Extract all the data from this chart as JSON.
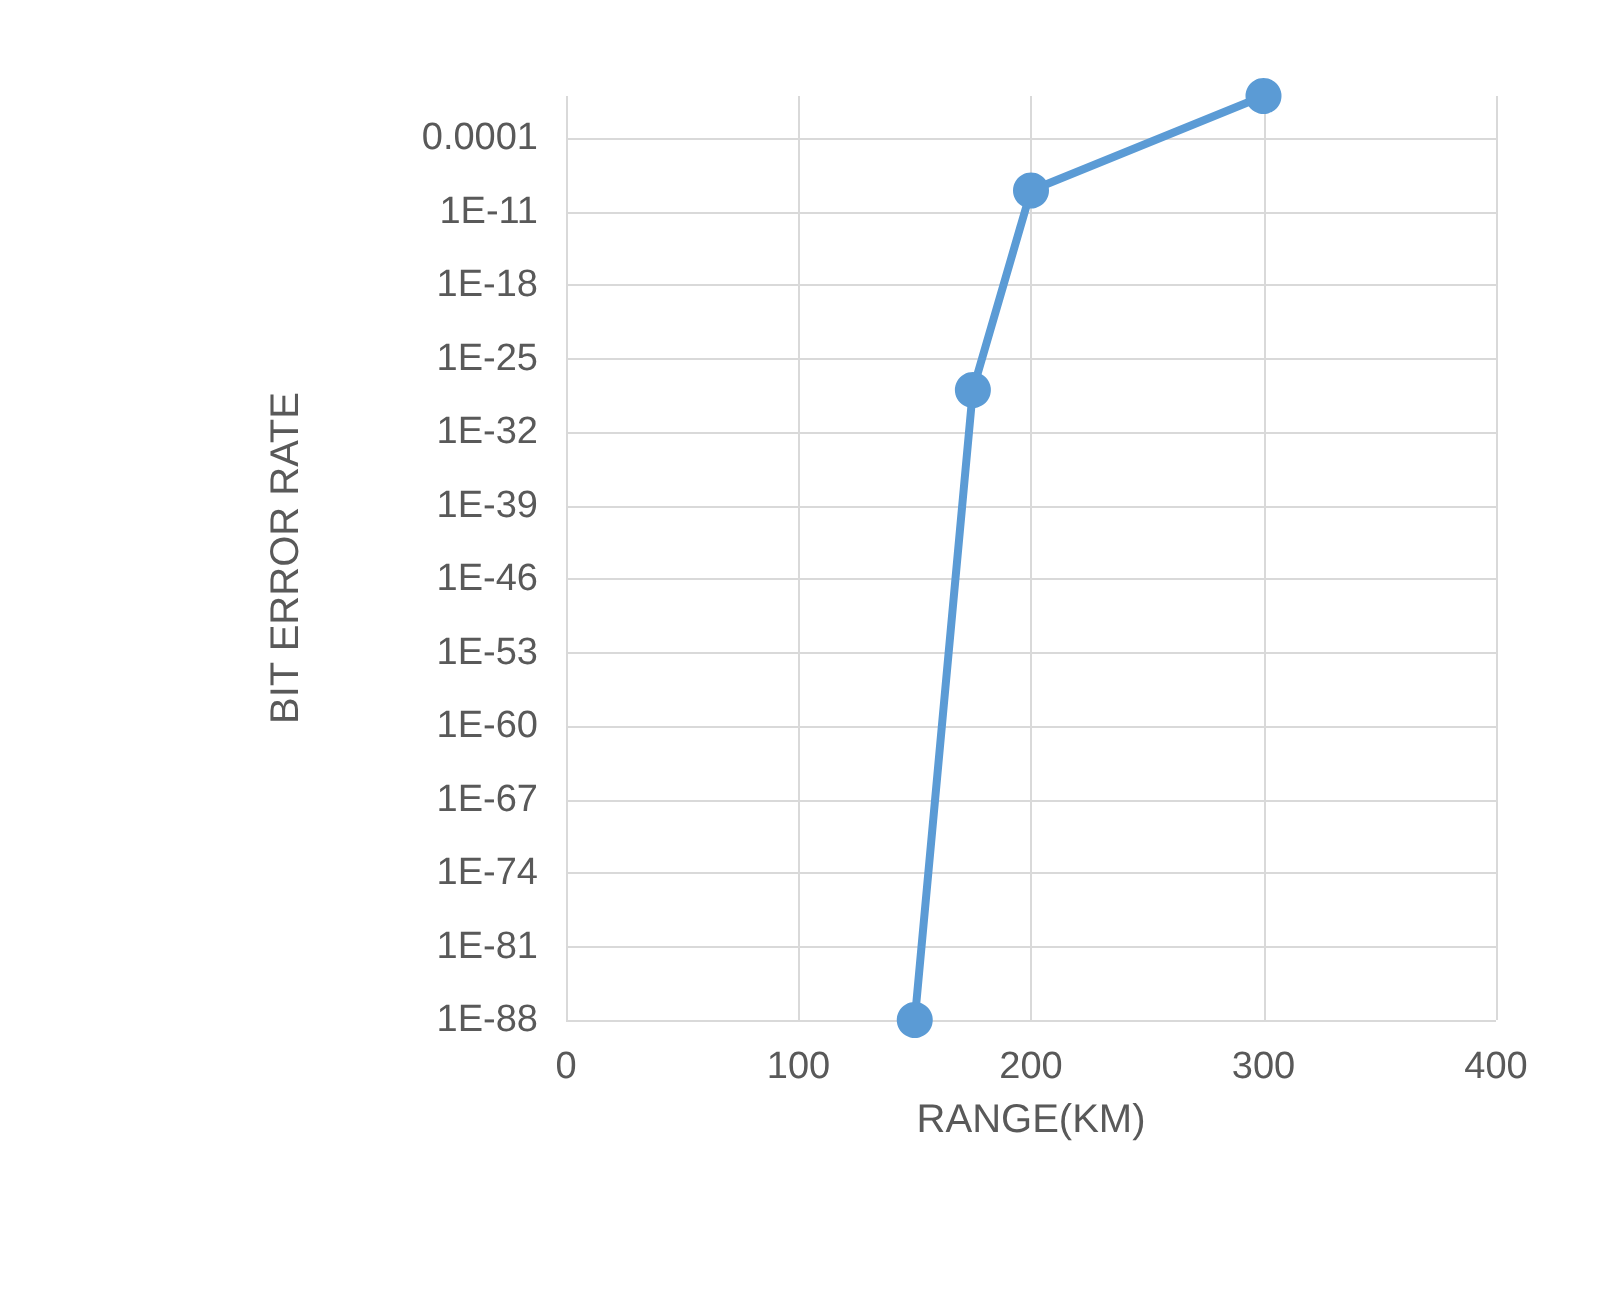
{
  "chart_data": {
    "type": "line",
    "xlabel": "RANGE(KM)",
    "ylabel": "BIT ERROR RATE",
    "x": [
      150,
      175,
      200,
      300
    ],
    "series": [
      {
        "color": "#5b9bd5",
        "values": [
          1e-88,
          1e-28,
          1e-09,
          1
        ]
      }
    ],
    "xlim": [
      0,
      400
    ],
    "xticks": [
      0,
      100,
      200,
      300,
      400
    ],
    "log": "y",
    "ylim": [
      1e-88,
      1
    ],
    "yticks": [
      {
        "value": 1e-88,
        "label": "1E-88"
      },
      {
        "value": 1e-81,
        "label": "1E-81"
      },
      {
        "value": 1e-74,
        "label": "1E-74"
      },
      {
        "value": 1e-67,
        "label": "1E-67"
      },
      {
        "value": 1e-60,
        "label": "1E-60"
      },
      {
        "value": 1e-53,
        "label": "1E-53"
      },
      {
        "value": 1e-46,
        "label": "1E-46"
      },
      {
        "value": 1e-39,
        "label": "1E-39"
      },
      {
        "value": 1e-32,
        "label": "1E-32"
      },
      {
        "value": 1e-25,
        "label": "1E-25"
      },
      {
        "value": 1e-18,
        "label": "1E-18"
      },
      {
        "value": 1e-11,
        "label": "1E-11"
      },
      {
        "value": 0.0001,
        "label": "0.0001"
      }
    ],
    "grid": true,
    "marker": "circle",
    "line_style": "solid"
  }
}
